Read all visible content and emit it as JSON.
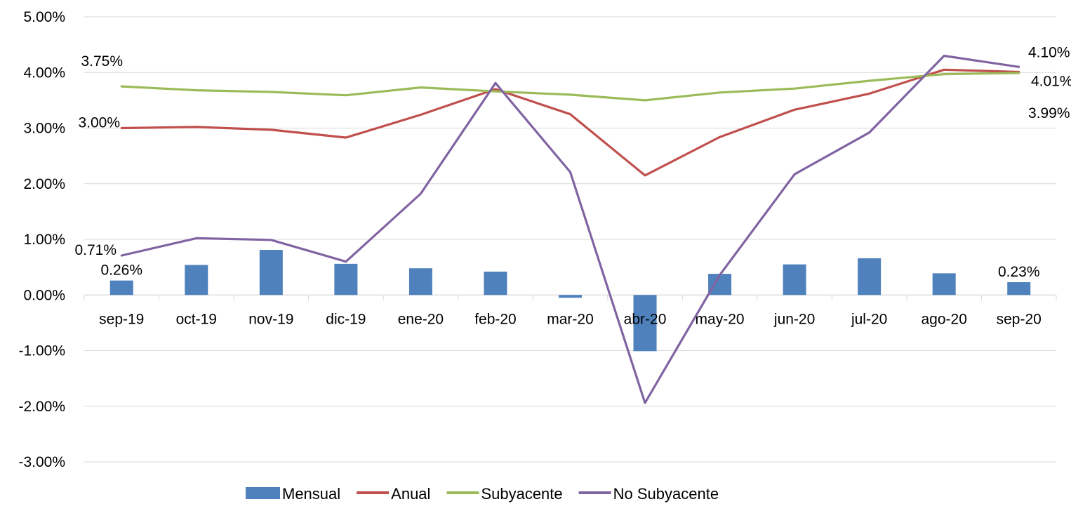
{
  "chart_data": {
    "type": "bar+line",
    "categories": [
      "sep-19",
      "oct-19",
      "nov-19",
      "dic-19",
      "ene-20",
      "feb-20",
      "mar-20",
      "abr-20",
      "may-20",
      "jun-20",
      "jul-20",
      "ago-20",
      "sep-20"
    ],
    "ylim": [
      -3,
      5
    ],
    "yticks": [
      5,
      4,
      3,
      2,
      1,
      0,
      -1,
      -2,
      -3
    ],
    "ytick_labels": [
      "5.00%",
      "4.00%",
      "3.00%",
      "2.00%",
      "1.00%",
      "0.00%",
      "-1.00%",
      "-2.00%",
      "-3.00%"
    ],
    "grid": "horizontal",
    "legend_position": "bottom",
    "series": [
      {
        "name": "Mensual",
        "kind": "bar",
        "color": "#4F81BD",
        "values": [
          0.26,
          0.54,
          0.81,
          0.56,
          0.48,
          0.42,
          -0.05,
          -1.01,
          0.38,
          0.55,
          0.66,
          0.39,
          0.23
        ]
      },
      {
        "name": "Anual",
        "kind": "line",
        "color": "#C0504D",
        "values": [
          3.0,
          3.02,
          2.97,
          2.83,
          3.24,
          3.7,
          3.25,
          2.15,
          2.84,
          3.33,
          3.62,
          4.05,
          4.01
        ]
      },
      {
        "name": "Subyacente",
        "kind": "line",
        "color": "#9BBB59",
        "values": [
          3.75,
          3.68,
          3.65,
          3.59,
          3.73,
          3.66,
          3.6,
          3.5,
          3.64,
          3.71,
          3.85,
          3.97,
          3.99
        ]
      },
      {
        "name": "No Subyacente",
        "kind": "line",
        "color": "#8064A2",
        "values": [
          0.71,
          1.02,
          0.99,
          0.6,
          1.82,
          3.81,
          2.21,
          -1.94,
          0.36,
          2.17,
          2.92,
          4.3,
          4.1
        ]
      }
    ],
    "annotations": [
      {
        "text": "3.75%",
        "series": "Subyacente",
        "index": 0
      },
      {
        "text": "3.00%",
        "series": "Anual",
        "index": 0
      },
      {
        "text": "0.71%",
        "series": "No Subyacente",
        "index": 0
      },
      {
        "text": "0.26%",
        "series": "Mensual",
        "index": 0
      },
      {
        "text": "4.10%",
        "series": "No Subyacente",
        "index": 12
      },
      {
        "text": "4.01%",
        "series": "Anual",
        "index": 12
      },
      {
        "text": "3.99%",
        "series": "Subyacente",
        "index": 12
      },
      {
        "text": "0.23%",
        "series": "Mensual",
        "index": 12
      }
    ]
  }
}
